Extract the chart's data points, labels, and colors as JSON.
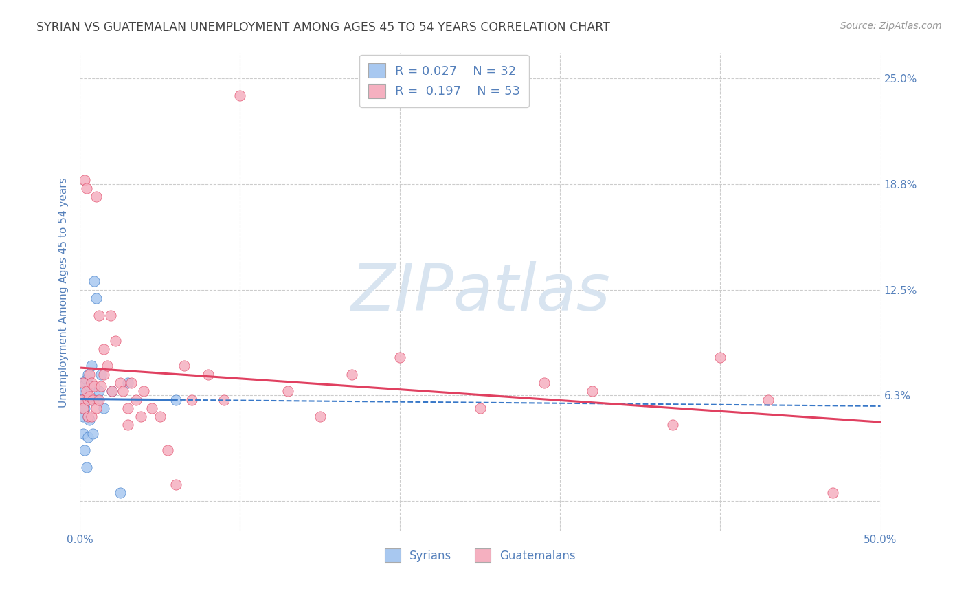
{
  "title": "SYRIAN VS GUATEMALAN UNEMPLOYMENT AMONG AGES 45 TO 54 YEARS CORRELATION CHART",
  "source": "Source: ZipAtlas.com",
  "ylabel": "Unemployment Among Ages 45 to 54 years",
  "xlim": [
    0.0,
    0.5
  ],
  "ylim": [
    -0.018,
    0.265
  ],
  "yticks": [
    0.0,
    0.0625,
    0.125,
    0.1875,
    0.25
  ],
  "ytick_labels": [
    "",
    "6.3%",
    "12.5%",
    "18.8%",
    "25.0%"
  ],
  "xticks": [
    0.0,
    0.1,
    0.2,
    0.3,
    0.4,
    0.5
  ],
  "xtick_labels": [
    "0.0%",
    "",
    "",
    "",
    "",
    "50.0%"
  ],
  "syrian_color": "#a8c8f0",
  "guatemalan_color": "#f5b0c0",
  "syrian_line_color": "#3878c8",
  "guatemalan_line_color": "#e04060",
  "R_syrian": 0.027,
  "N_syrian": 32,
  "R_guatemalan": 0.197,
  "N_guatemalan": 53,
  "background_color": "#ffffff",
  "grid_color": "#cccccc",
  "watermark_color": "#d8e4f0",
  "title_color": "#444444",
  "axis_label_color": "#5580bb",
  "tick_color": "#5580bb",
  "syrians_x": [
    0.001,
    0.001,
    0.001,
    0.002,
    0.002,
    0.002,
    0.002,
    0.003,
    0.003,
    0.003,
    0.004,
    0.004,
    0.004,
    0.005,
    0.005,
    0.005,
    0.005,
    0.006,
    0.006,
    0.007,
    0.007,
    0.008,
    0.009,
    0.01,
    0.011,
    0.012,
    0.013,
    0.015,
    0.02,
    0.025,
    0.03,
    0.06
  ],
  "syrians_y": [
    0.07,
    0.063,
    0.055,
    0.068,
    0.058,
    0.05,
    0.04,
    0.065,
    0.055,
    0.03,
    0.072,
    0.06,
    0.02,
    0.075,
    0.062,
    0.05,
    0.038,
    0.068,
    0.048,
    0.08,
    0.06,
    0.04,
    0.13,
    0.12,
    0.06,
    0.065,
    0.075,
    0.055,
    0.065,
    0.005,
    0.07,
    0.06
  ],
  "guatemalans_x": [
    0.001,
    0.002,
    0.002,
    0.003,
    0.004,
    0.004,
    0.005,
    0.005,
    0.006,
    0.006,
    0.007,
    0.007,
    0.008,
    0.009,
    0.01,
    0.01,
    0.012,
    0.012,
    0.013,
    0.015,
    0.015,
    0.017,
    0.019,
    0.02,
    0.022,
    0.025,
    0.027,
    0.03,
    0.03,
    0.032,
    0.035,
    0.038,
    0.04,
    0.045,
    0.05,
    0.055,
    0.06,
    0.065,
    0.07,
    0.08,
    0.09,
    0.1,
    0.13,
    0.15,
    0.17,
    0.2,
    0.25,
    0.29,
    0.32,
    0.37,
    0.4,
    0.43,
    0.47
  ],
  "guatemalans_y": [
    0.06,
    0.07,
    0.055,
    0.19,
    0.185,
    0.065,
    0.06,
    0.05,
    0.075,
    0.062,
    0.07,
    0.05,
    0.06,
    0.068,
    0.18,
    0.055,
    0.11,
    0.06,
    0.068,
    0.09,
    0.075,
    0.08,
    0.11,
    0.065,
    0.095,
    0.07,
    0.065,
    0.055,
    0.045,
    0.07,
    0.06,
    0.05,
    0.065,
    0.055,
    0.05,
    0.03,
    0.01,
    0.08,
    0.06,
    0.075,
    0.06,
    0.24,
    0.065,
    0.05,
    0.075,
    0.085,
    0.055,
    0.07,
    0.065,
    0.045,
    0.085,
    0.06,
    0.005
  ]
}
